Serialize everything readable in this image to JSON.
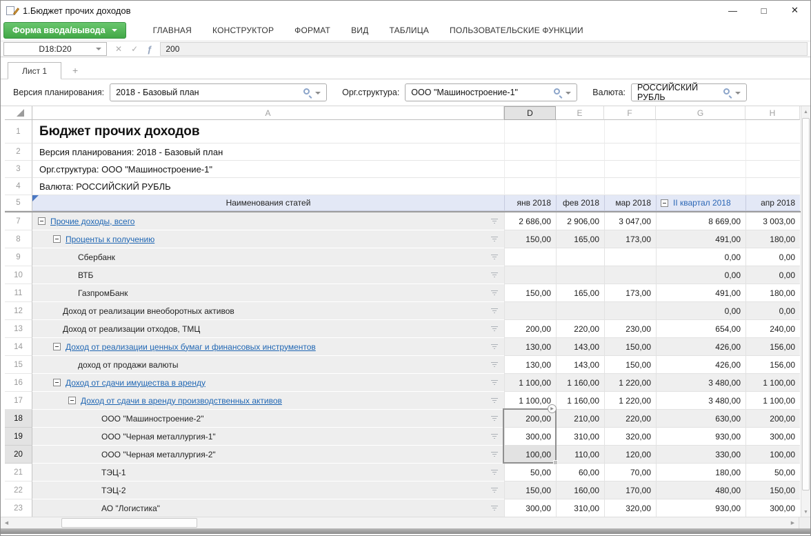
{
  "window": {
    "title": "1.Бюджет прочих доходов"
  },
  "glyphs": {
    "minimize": "—",
    "maximize": "□",
    "close": "✕",
    "cancel": "✕",
    "confirm": "✓",
    "fx": "ƒ",
    "tab_add": "+",
    "scroll_up": "▲",
    "scroll_down": "▼",
    "scroll_left": "◀",
    "scroll_right": "▶",
    "selection_handle_arrow": "▶",
    "hidden_rows_marker": ".."
  },
  "ribbon": {
    "form_button": "Форма ввода/вывода",
    "tabs": [
      "ГЛАВНАЯ",
      "КОНСТРУКТОР",
      "ФОРМАТ",
      "ВИД",
      "ТАБЛИЦА",
      "ПОЛЬЗОВАТЕЛЬСКИЕ ФУНКЦИИ"
    ]
  },
  "formula_bar": {
    "name_box": "D18:D20",
    "value": "200"
  },
  "sheet_tabs": {
    "active": "Лист 1"
  },
  "filters": [
    {
      "label": "Версия планирования:",
      "value": "2018 - Базовый план"
    },
    {
      "label": "Орг.структура:",
      "value": "ООО \"Машиностроение-1\""
    },
    {
      "label": "Валюта:",
      "value": "РОССИЙСКИЙ РУБЛЬ"
    }
  ],
  "grid": {
    "columns": [
      "A",
      "D",
      "E",
      "F",
      "G",
      "H"
    ],
    "selected_column": "D",
    "selection_range": "D18:D20",
    "info_rows": [
      {
        "num": 1,
        "text": "Бюджет прочих доходов",
        "style": "title"
      },
      {
        "num": 2,
        "text": "Версия планирования: 2018 - Базовый план"
      },
      {
        "num": 3,
        "text": "Орг.структура: ООО \"Машиностроение-1\""
      },
      {
        "num": 4,
        "text": "Валюта: РОССИЙСКИЙ РУБЛЬ"
      }
    ],
    "header_row": {
      "num": 5,
      "label": "Наименования статей",
      "periods": [
        {
          "text": "янв 2018",
          "group": false
        },
        {
          "text": "фев 2018",
          "group": false
        },
        {
          "text": "мар 2018",
          "group": false
        },
        {
          "text": "II квартал 2018",
          "group": true
        },
        {
          "text": "апр 2018",
          "group": false
        }
      ]
    },
    "data_rows": [
      {
        "num": 7,
        "label": "Прочие доходы, всего",
        "level": 0,
        "group": true,
        "values": [
          "2 686,00",
          "2 906,00",
          "3 047,00",
          "8 669,00",
          "3 003,00"
        ]
      },
      {
        "num": 8,
        "label": "Проценты к получению",
        "level": 1,
        "group": true,
        "values": [
          "150,00",
          "165,00",
          "173,00",
          "491,00",
          "180,00"
        ]
      },
      {
        "num": 9,
        "label": "Сбербанк",
        "level": 2,
        "group": false,
        "values": [
          "",
          "",
          "",
          "0,00",
          "0,00"
        ]
      },
      {
        "num": 10,
        "label": "ВТБ",
        "level": 2,
        "group": false,
        "values": [
          "",
          "",
          "",
          "0,00",
          "0,00"
        ]
      },
      {
        "num": 11,
        "label": "ГазпромБанк",
        "level": 2,
        "group": false,
        "values": [
          "150,00",
          "165,00",
          "173,00",
          "491,00",
          "180,00"
        ]
      },
      {
        "num": 12,
        "label": "Доход от реализации внеоборотных активов",
        "level": 1,
        "group": false,
        "values": [
          "",
          "",
          "",
          "0,00",
          "0,00"
        ]
      },
      {
        "num": 13,
        "label": "Доход от реализации отходов, ТМЦ",
        "level": 1,
        "group": false,
        "values": [
          "200,00",
          "220,00",
          "230,00",
          "654,00",
          "240,00"
        ]
      },
      {
        "num": 14,
        "label": "Доход от реализации ценных бумаг и финансовых инструментов",
        "level": 1,
        "group": true,
        "values": [
          "130,00",
          "143,00",
          "150,00",
          "426,00",
          "156,00"
        ]
      },
      {
        "num": 15,
        "label": "доход от продажи валюты",
        "level": 2,
        "group": false,
        "values": [
          "130,00",
          "143,00",
          "150,00",
          "426,00",
          "156,00"
        ]
      },
      {
        "num": 16,
        "label": "Доход от сдачи имущества в аренду",
        "level": 1,
        "group": true,
        "values": [
          "1 100,00",
          "1 160,00",
          "1 220,00",
          "3 480,00",
          "1 100,00"
        ]
      },
      {
        "num": 17,
        "label": "Доход от сдачи в аренду производственных активов",
        "level": 2,
        "group": true,
        "values": [
          "1 100,00",
          "1 160,00",
          "1 220,00",
          "3 480,00",
          "1 100,00"
        ]
      },
      {
        "num": 18,
        "label": "ООО \"Машиностроение-2\"",
        "level": 3,
        "group": false,
        "selected": true,
        "values": [
          "200,00",
          "210,00",
          "220,00",
          "630,00",
          "200,00"
        ]
      },
      {
        "num": 19,
        "label": "ООО \"Черная металлургия-1\"",
        "level": 3,
        "group": false,
        "selected": true,
        "values": [
          "300,00",
          "310,00",
          "320,00",
          "930,00",
          "300,00"
        ]
      },
      {
        "num": 20,
        "label": "ООО \"Черная металлургия-2\"",
        "level": 3,
        "group": false,
        "selected": true,
        "shade_first": true,
        "values": [
          "100,00",
          "110,00",
          "120,00",
          "330,00",
          "100,00"
        ]
      },
      {
        "num": 21,
        "label": "ТЭЦ-1",
        "level": 3,
        "group": false,
        "values": [
          "50,00",
          "60,00",
          "70,00",
          "180,00",
          "50,00"
        ]
      },
      {
        "num": 22,
        "label": "ТЭЦ-2",
        "level": 3,
        "group": false,
        "values": [
          "150,00",
          "160,00",
          "170,00",
          "480,00",
          "150,00"
        ]
      },
      {
        "num": 23,
        "label": "АО \"Логистика\"",
        "level": 3,
        "group": false,
        "values": [
          "300,00",
          "310,00",
          "320,00",
          "930,00",
          "300,00"
        ]
      }
    ]
  }
}
